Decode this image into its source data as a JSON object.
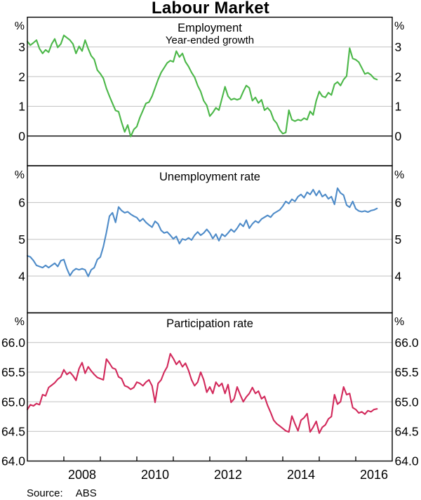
{
  "title": "Labour Market",
  "unit": "%",
  "source": {
    "label": "Source:",
    "value": "ABS"
  },
  "x_axis": {
    "domain": [
      2007,
      2017
    ],
    "tick_years": [
      2008,
      2009,
      2010,
      2011,
      2012,
      2013,
      2014,
      2015,
      2016
    ],
    "labels": [
      "2008",
      "2010",
      "2012",
      "2014",
      "2016"
    ],
    "label_centers": [
      2008.5,
      2010.5,
      2012.5,
      2014.5,
      2016.5
    ]
  },
  "colors": {
    "employment": "#4bb748",
    "unemployment": "#4e8bc8",
    "participation": "#d2295b",
    "gridline": "#c8c8c8",
    "axis": "#000000"
  },
  "chart_data": [
    {
      "type": "line",
      "title": "Employment",
      "subtitle": "Year-ended growth",
      "ylabel": "%",
      "color": "#4bb748",
      "ylim": [
        -1,
        4
      ],
      "gridlines": [
        1,
        2,
        3
      ],
      "zero_line": true,
      "yticks": [
        {
          "v": 3,
          "label": "3"
        },
        {
          "v": 2,
          "label": "2"
        },
        {
          "v": 1,
          "label": "1"
        },
        {
          "v": 0,
          "label": "0"
        }
      ],
      "x_start": 2007.0,
      "x_step": 0.0833333,
      "values": [
        3.18,
        3.06,
        3.14,
        3.23,
        2.94,
        2.78,
        2.9,
        2.82,
        3.1,
        3.27,
        2.98,
        3.1,
        3.39,
        3.31,
        3.23,
        3.1,
        2.78,
        3.02,
        2.86,
        3.23,
        2.94,
        2.7,
        2.58,
        2.22,
        2.1,
        1.94,
        1.6,
        1.34,
        1.1,
        0.86,
        0.82,
        0.46,
        0.14,
        0.37,
        -0.02,
        0.22,
        0.32,
        0.62,
        0.86,
        1.1,
        1.14,
        1.34,
        1.62,
        1.9,
        2.14,
        2.3,
        2.46,
        2.54,
        2.5,
        2.86,
        2.66,
        2.78,
        2.5,
        2.34,
        2.14,
        1.98,
        1.7,
        1.5,
        1.19,
        1.03,
        0.67,
        0.79,
        0.95,
        0.87,
        1.26,
        1.66,
        1.34,
        1.22,
        1.26,
        1.22,
        1.26,
        1.5,
        1.7,
        1.62,
        1.19,
        1.3,
        1.11,
        1.22,
        0.87,
        0.95,
        0.83,
        0.55,
        0.43,
        0.2,
        0.08,
        0.12,
        0.87,
        0.55,
        0.5,
        0.55,
        0.52,
        0.6,
        0.55,
        0.83,
        0.71,
        1.19,
        1.5,
        1.34,
        1.3,
        1.46,
        1.38,
        1.74,
        1.82,
        1.7,
        1.9,
        2.02,
        2.96,
        2.61,
        2.57,
        2.49,
        2.29,
        2.09,
        2.13,
        2.06,
        1.94,
        1.9
      ]
    },
    {
      "type": "line",
      "title": "Unemployment rate",
      "subtitle": "",
      "ylabel": "%",
      "color": "#4e8bc8",
      "ylim": [
        3,
        7
      ],
      "gridlines": [
        4,
        5,
        6
      ],
      "zero_line": false,
      "yticks": [
        {
          "v": 6,
          "label": "6"
        },
        {
          "v": 5,
          "label": "5"
        },
        {
          "v": 4,
          "label": "4"
        }
      ],
      "x_start": 2007.0,
      "x_step": 0.0833333,
      "values": [
        4.55,
        4.52,
        4.42,
        4.29,
        4.26,
        4.23,
        4.29,
        4.23,
        4.29,
        4.35,
        4.26,
        4.42,
        4.45,
        4.2,
        4.01,
        4.14,
        4.2,
        4.17,
        4.2,
        4.17,
        3.99,
        4.17,
        4.23,
        4.45,
        4.52,
        4.8,
        5.19,
        5.63,
        5.72,
        5.46,
        5.88,
        5.78,
        5.72,
        5.75,
        5.68,
        5.63,
        5.59,
        5.49,
        5.56,
        5.46,
        5.39,
        5.33,
        5.49,
        5.42,
        5.24,
        5.17,
        5.2,
        5.11,
        5.01,
        5.08,
        4.88,
        5.01,
        4.98,
        5.04,
        4.98,
        5.11,
        5.2,
        5.11,
        5.17,
        5.27,
        5.17,
        5.02,
        5.14,
        4.96,
        5.14,
        5.08,
        5.17,
        5.27,
        5.2,
        5.3,
        5.43,
        5.35,
        5.52,
        5.3,
        5.42,
        5.5,
        5.45,
        5.55,
        5.6,
        5.65,
        5.6,
        5.7,
        5.75,
        5.8,
        5.9,
        6.03,
        5.97,
        6.09,
        6.03,
        6.16,
        6.22,
        6.13,
        6.28,
        6.22,
        6.35,
        6.19,
        6.32,
        6.16,
        6.22,
        6.1,
        6.16,
        5.95,
        6.39,
        6.26,
        6.2,
        5.93,
        5.87,
        6.03,
        5.83,
        5.77,
        5.75,
        5.77,
        5.74,
        5.78,
        5.8,
        5.84
      ]
    },
    {
      "type": "line",
      "title": "Participation rate",
      "subtitle": "",
      "ylabel": "%",
      "color": "#d2295b",
      "ylim": [
        64.0,
        66.5
      ],
      "gridlines": [
        64.5,
        65.0,
        65.5,
        66.0
      ],
      "zero_line": false,
      "yticks": [
        {
          "v": 66.0,
          "label": "66.0"
        },
        {
          "v": 65.5,
          "label": "65.5"
        },
        {
          "v": 65.0,
          "label": "65.0"
        },
        {
          "v": 64.5,
          "label": "64.5"
        },
        {
          "v": 64.0,
          "label": "64.0"
        }
      ],
      "x_start": 2007.0,
      "x_step": 0.0833333,
      "values": [
        64.87,
        64.95,
        64.93,
        64.97,
        64.95,
        65.12,
        65.1,
        65.24,
        65.28,
        65.32,
        65.38,
        65.42,
        65.54,
        65.46,
        65.5,
        65.44,
        65.36,
        65.56,
        65.66,
        65.48,
        65.59,
        65.52,
        65.46,
        65.41,
        65.39,
        65.37,
        65.72,
        65.65,
        65.57,
        65.55,
        65.42,
        65.39,
        65.27,
        65.25,
        65.21,
        65.24,
        65.33,
        65.31,
        65.27,
        65.33,
        65.37,
        65.27,
        64.99,
        65.31,
        65.37,
        65.5,
        65.59,
        65.81,
        65.73,
        65.63,
        65.69,
        65.59,
        65.65,
        65.53,
        65.37,
        65.27,
        65.33,
        65.5,
        65.37,
        65.16,
        65.25,
        65.14,
        65.33,
        65.26,
        65.31,
        65.14,
        65.29,
        64.99,
        65.05,
        65.25,
        65.12,
        65.0,
        65.08,
        65.14,
        65.24,
        65.14,
        65.18,
        65.05,
        65.09,
        64.94,
        64.82,
        64.69,
        64.63,
        64.59,
        64.55,
        64.51,
        64.49,
        64.76,
        64.63,
        64.51,
        64.69,
        64.73,
        64.8,
        64.49,
        64.57,
        64.67,
        64.47,
        64.57,
        64.61,
        64.71,
        64.75,
        65.12,
        64.96,
        65.0,
        65.25,
        65.12,
        65.14,
        64.9,
        64.87,
        64.81,
        64.83,
        64.79,
        64.85,
        64.83,
        64.87,
        64.88
      ]
    }
  ]
}
